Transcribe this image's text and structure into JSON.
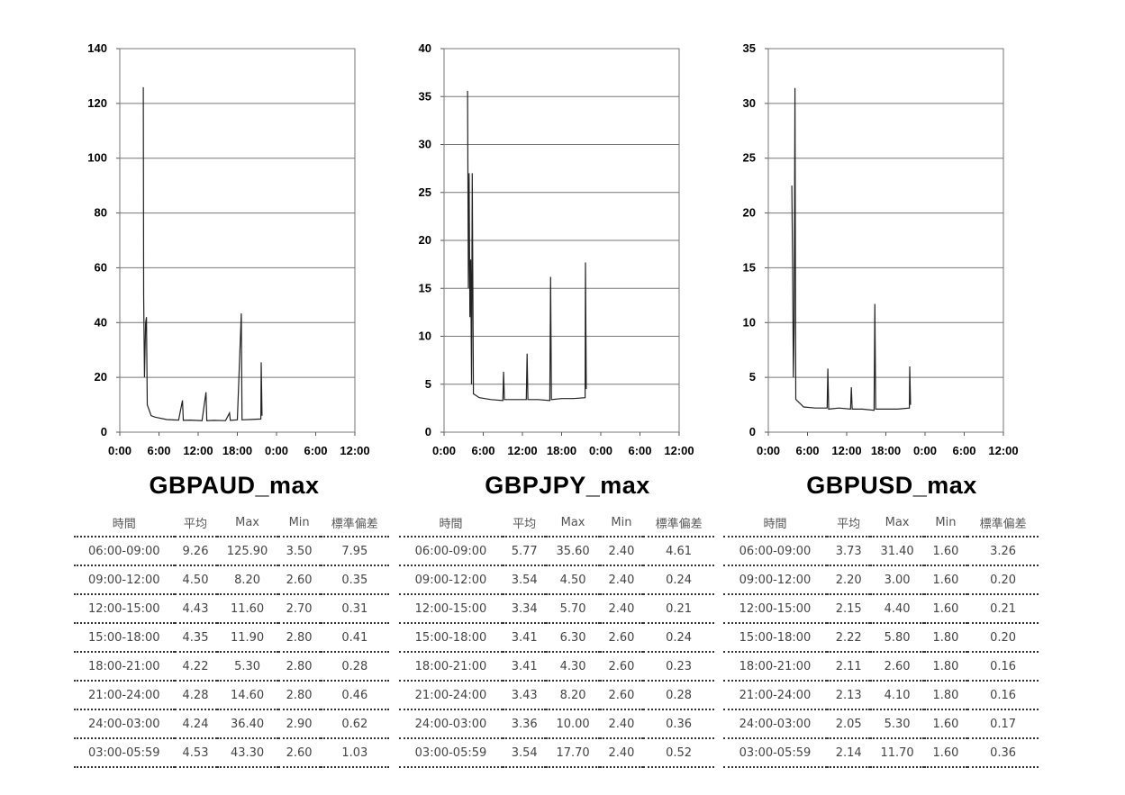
{
  "chart_data": [
    {
      "type": "line",
      "title": "GBPAUD_max",
      "xlabel": "",
      "ylabel": "",
      "ylim": [
        0,
        140
      ],
      "yticks": [
        0,
        20,
        40,
        60,
        80,
        100,
        120,
        140
      ],
      "xticks": [
        "0:00",
        "6:00",
        "12:00",
        "18:00",
        "0:00",
        "6:00",
        "12:00"
      ],
      "xlim_hours": [
        0,
        60
      ],
      "grid": true,
      "series": [
        {
          "values": [
            [
              6,
              125.9
            ],
            [
              6.1,
              50
            ],
            [
              6.3,
              20
            ],
            [
              6.6,
              40
            ],
            [
              6.8,
              42
            ],
            [
              7,
              10
            ],
            [
              8,
              6
            ],
            [
              9,
              5.5
            ],
            [
              12,
              4.6
            ],
            [
              15,
              4.4
            ],
            [
              16,
              11.6
            ],
            [
              16.2,
              4.3
            ],
            [
              18,
              4.4
            ],
            [
              21,
              4.2
            ],
            [
              22,
              14.6
            ],
            [
              22.2,
              4.2
            ],
            [
              24,
              4.3
            ],
            [
              27,
              4.2
            ],
            [
              28,
              7
            ],
            [
              28.2,
              4.3
            ],
            [
              30,
              4.5
            ],
            [
              31,
              43.3
            ],
            [
              31.2,
              4.5
            ],
            [
              33,
              4.6
            ],
            [
              36,
              4.8
            ],
            [
              36.1,
              25.5
            ],
            [
              36.3,
              6
            ]
          ]
        }
      ]
    },
    {
      "type": "line",
      "title": "GBPJPY_max",
      "xlabel": "",
      "ylabel": "",
      "ylim": [
        0,
        40
      ],
      "yticks": [
        0,
        5,
        10,
        15,
        20,
        25,
        30,
        35,
        40
      ],
      "xticks": [
        "0:00",
        "6:00",
        "12:00",
        "18:00",
        "0:00",
        "6:00",
        "12:00"
      ],
      "xlim_hours": [
        0,
        60
      ],
      "grid": true,
      "series": [
        {
          "values": [
            [
              6,
              35.6
            ],
            [
              6.2,
              15
            ],
            [
              6.4,
              27
            ],
            [
              6.6,
              12
            ],
            [
              6.8,
              18
            ],
            [
              7,
              5
            ],
            [
              7.2,
              27
            ],
            [
              7.5,
              4
            ],
            [
              9,
              3.6
            ],
            [
              12,
              3.4
            ],
            [
              15,
              3.3
            ],
            [
              15.2,
              6.3
            ],
            [
              15.4,
              3.4
            ],
            [
              18,
              3.4
            ],
            [
              21,
              3.4
            ],
            [
              21.2,
              8.2
            ],
            [
              21.4,
              3.4
            ],
            [
              24,
              3.4
            ],
            [
              27,
              3.3
            ],
            [
              27.2,
              16.2
            ],
            [
              27.4,
              3.4
            ],
            [
              30,
              3.5
            ],
            [
              33,
              3.5
            ],
            [
              36,
              3.6
            ],
            [
              36.1,
              17.7
            ],
            [
              36.3,
              4.5
            ]
          ]
        }
      ]
    },
    {
      "type": "line",
      "title": "GBPUSD_max",
      "xlabel": "",
      "ylabel": "",
      "ylim": [
        0,
        35
      ],
      "yticks": [
        0,
        5,
        10,
        15,
        20,
        25,
        30,
        35
      ],
      "xticks": [
        "0:00",
        "6:00",
        "12:00",
        "18:00",
        "0:00",
        "6:00",
        "12:00"
      ],
      "xlim_hours": [
        0,
        60
      ],
      "grid": true,
      "series": [
        {
          "values": [
            [
              6,
              22.5
            ],
            [
              6.2,
              15
            ],
            [
              6.4,
              5
            ],
            [
              6.6,
              10
            ],
            [
              6.8,
              31.4
            ],
            [
              7,
              3
            ],
            [
              9,
              2.3
            ],
            [
              12,
              2.2
            ],
            [
              15,
              2.2
            ],
            [
              15.2,
              5.8
            ],
            [
              15.4,
              2.1
            ],
            [
              18,
              2.2
            ],
            [
              21,
              2.1
            ],
            [
              21.2,
              4.1
            ],
            [
              21.4,
              2.1
            ],
            [
              24,
              2.1
            ],
            [
              27,
              2.0
            ],
            [
              27.2,
              11.7
            ],
            [
              27.4,
              2.1
            ],
            [
              30,
              2.1
            ],
            [
              33,
              2.1
            ],
            [
              36,
              2.2
            ],
            [
              36.1,
              6.0
            ],
            [
              36.3,
              2.5
            ]
          ]
        }
      ]
    }
  ],
  "tables": [
    {
      "headers": [
        "時間",
        "平均",
        "Max",
        "Min",
        "標準偏差"
      ],
      "rows": [
        [
          "06:00-09:00",
          "9.26",
          "125.90",
          "3.50",
          "7.95"
        ],
        [
          "09:00-12:00",
          "4.50",
          "8.20",
          "2.60",
          "0.35"
        ],
        [
          "12:00-15:00",
          "4.43",
          "11.60",
          "2.70",
          "0.31"
        ],
        [
          "15:00-18:00",
          "4.35",
          "11.90",
          "2.80",
          "0.41"
        ],
        [
          "18:00-21:00",
          "4.22",
          "5.30",
          "2.80",
          "0.28"
        ],
        [
          "21:00-24:00",
          "4.28",
          "14.60",
          "2.80",
          "0.46"
        ],
        [
          "24:00-03:00",
          "4.24",
          "36.40",
          "2.90",
          "0.62"
        ],
        [
          "03:00-05:59",
          "4.53",
          "43.30",
          "2.60",
          "1.03"
        ]
      ]
    },
    {
      "headers": [
        "時間",
        "平均",
        "Max",
        "Min",
        "標準偏差"
      ],
      "rows": [
        [
          "06:00-09:00",
          "5.77",
          "35.60",
          "2.40",
          "4.61"
        ],
        [
          "09:00-12:00",
          "3.54",
          "4.50",
          "2.40",
          "0.24"
        ],
        [
          "12:00-15:00",
          "3.34",
          "5.70",
          "2.40",
          "0.21"
        ],
        [
          "15:00-18:00",
          "3.41",
          "6.30",
          "2.60",
          "0.24"
        ],
        [
          "18:00-21:00",
          "3.41",
          "4.30",
          "2.60",
          "0.23"
        ],
        [
          "21:00-24:00",
          "3.43",
          "8.20",
          "2.60",
          "0.28"
        ],
        [
          "24:00-03:00",
          "3.36",
          "10.00",
          "2.40",
          "0.36"
        ],
        [
          "03:00-05:59",
          "3.54",
          "17.70",
          "2.40",
          "0.52"
        ]
      ]
    },
    {
      "headers": [
        "時間",
        "平均",
        "Max",
        "Min",
        "標準偏差"
      ],
      "rows": [
        [
          "06:00-09:00",
          "3.73",
          "31.40",
          "1.60",
          "3.26"
        ],
        [
          "09:00-12:00",
          "2.20",
          "3.00",
          "1.60",
          "0.20"
        ],
        [
          "12:00-15:00",
          "2.15",
          "4.40",
          "1.60",
          "0.21"
        ],
        [
          "15:00-18:00",
          "2.22",
          "5.80",
          "1.80",
          "0.20"
        ],
        [
          "18:00-21:00",
          "2.11",
          "2.60",
          "1.80",
          "0.16"
        ],
        [
          "21:00-24:00",
          "2.13",
          "4.10",
          "1.80",
          "0.16"
        ],
        [
          "24:00-03:00",
          "2.05",
          "5.30",
          "1.60",
          "0.17"
        ],
        [
          "03:00-05:59",
          "2.14",
          "11.70",
          "1.60",
          "0.36"
        ]
      ]
    }
  ]
}
